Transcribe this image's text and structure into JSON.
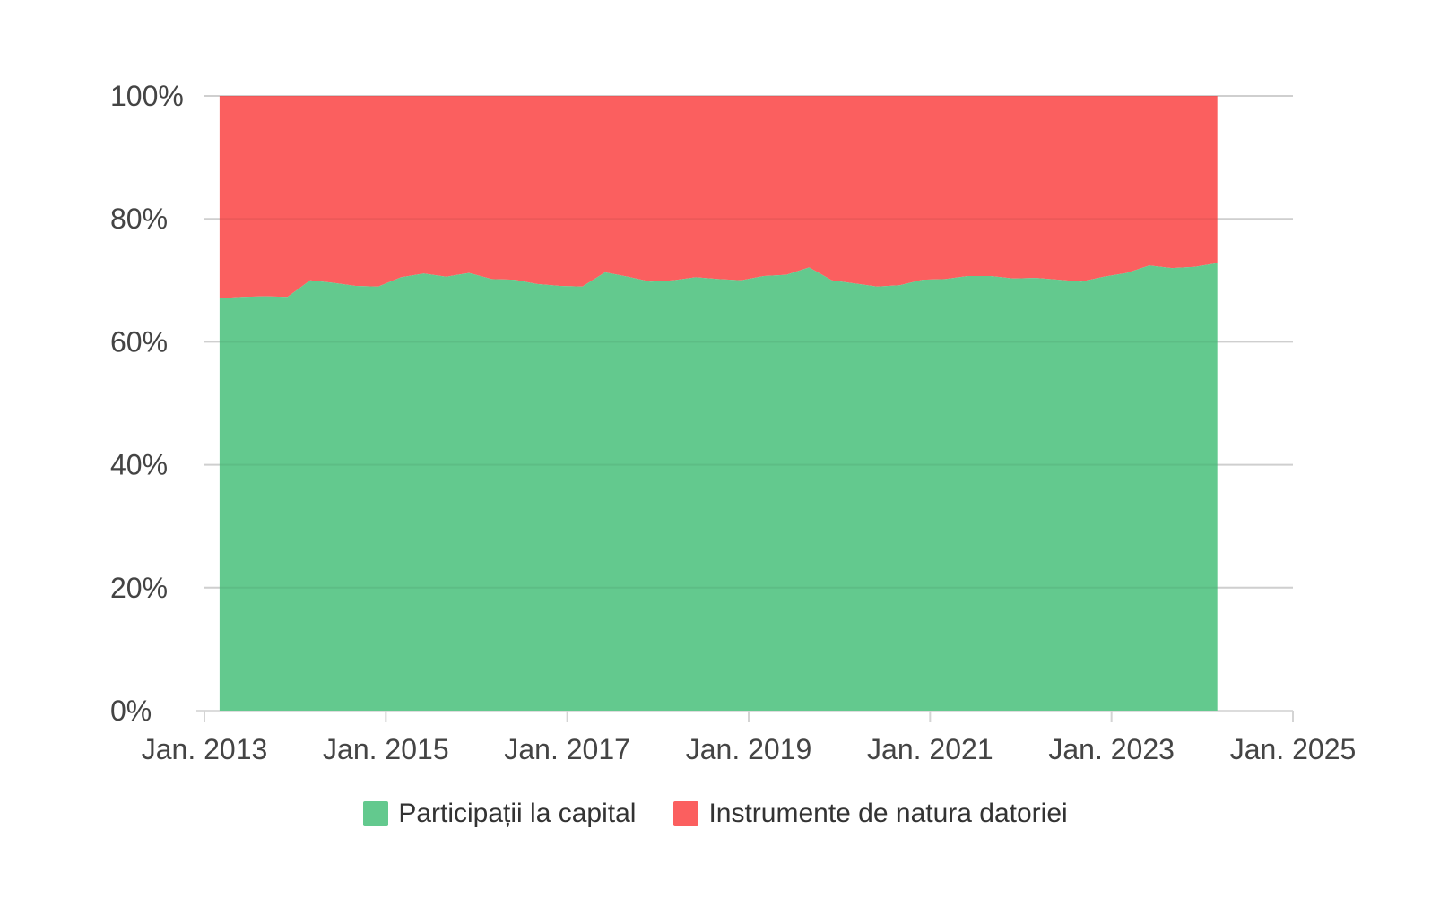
{
  "chart": {
    "background": "#ffffff",
    "axis_text_color": "#444444",
    "grid_color": "#dcdcdc",
    "tick_color": "#d4d4d4"
  },
  "chart_data": {
    "type": "area",
    "stacked": true,
    "normalized_percent": true,
    "title": "",
    "xlabel": "",
    "ylabel": "",
    "grid": true,
    "legend_position": "bottom",
    "x": [
      "2013-03",
      "2013-06",
      "2013-09",
      "2013-12",
      "2014-03",
      "2014-06",
      "2014-09",
      "2014-12",
      "2015-03",
      "2015-06",
      "2015-09",
      "2015-12",
      "2016-03",
      "2016-06",
      "2016-09",
      "2016-12",
      "2017-03",
      "2017-06",
      "2017-09",
      "2017-12",
      "2018-03",
      "2018-06",
      "2018-09",
      "2018-12",
      "2019-03",
      "2019-06",
      "2019-09",
      "2019-12",
      "2020-03",
      "2020-06",
      "2020-09",
      "2020-12",
      "2021-03",
      "2021-06",
      "2021-09",
      "2021-12",
      "2022-03",
      "2022-06",
      "2022-09",
      "2022-12",
      "2023-03",
      "2023-06",
      "2023-09",
      "2023-12",
      "2024-03"
    ],
    "series": [
      {
        "name": "Participații la capital",
        "color": "#63c98e",
        "values": [
          67.1,
          67.3,
          67.4,
          67.3,
          70.0,
          69.6,
          69.1,
          69.0,
          70.5,
          71.1,
          70.6,
          71.2,
          70.2,
          70.1,
          69.4,
          69.1,
          69.0,
          71.3,
          70.6,
          69.8,
          70.0,
          70.5,
          70.2,
          70.0,
          70.7,
          70.9,
          72.1,
          70.0,
          69.5,
          69.0,
          69.2,
          70.1,
          70.2,
          70.7,
          70.7,
          70.3,
          70.4,
          70.1,
          69.8,
          70.6,
          71.2,
          72.4,
          72.0,
          72.2,
          72.8
        ]
      },
      {
        "name": "Instrumente de natura datoriei",
        "color": "#fb5f5f",
        "values": [
          32.9,
          32.7,
          32.6,
          32.7,
          30.0,
          30.4,
          30.9,
          31.0,
          29.5,
          28.9,
          29.4,
          28.8,
          29.8,
          29.9,
          30.6,
          30.9,
          31.0,
          28.7,
          29.4,
          30.2,
          30.0,
          29.5,
          29.8,
          30.0,
          29.3,
          29.1,
          27.9,
          30.0,
          30.5,
          31.0,
          30.8,
          29.9,
          29.8,
          29.3,
          29.3,
          29.7,
          29.6,
          29.9,
          30.2,
          29.4,
          28.8,
          27.6,
          28.0,
          27.8,
          27.2
        ]
      }
    ],
    "x_axis": {
      "range_start": 2013,
      "range_end": 2025,
      "ticks": [
        2013,
        2015,
        2017,
        2019,
        2021,
        2023,
        2025
      ],
      "tick_labels": [
        "Jan. 2013",
        "Jan. 2015",
        "Jan. 2017",
        "Jan. 2019",
        "Jan. 2021",
        "Jan. 2023",
        "Jan. 2025"
      ]
    },
    "y_axis": {
      "range": [
        0,
        100
      ],
      "ticks": [
        0,
        20,
        40,
        60,
        80,
        100
      ],
      "tick_labels": [
        "0%",
        "20%",
        "40%",
        "60%",
        "80%",
        "100%"
      ]
    }
  },
  "legend": {
    "items": [
      {
        "label": "Participații la capital",
        "color": "#63c98e"
      },
      {
        "label": "Instrumente de natura datoriei",
        "color": "#fb5f5f"
      }
    ]
  }
}
